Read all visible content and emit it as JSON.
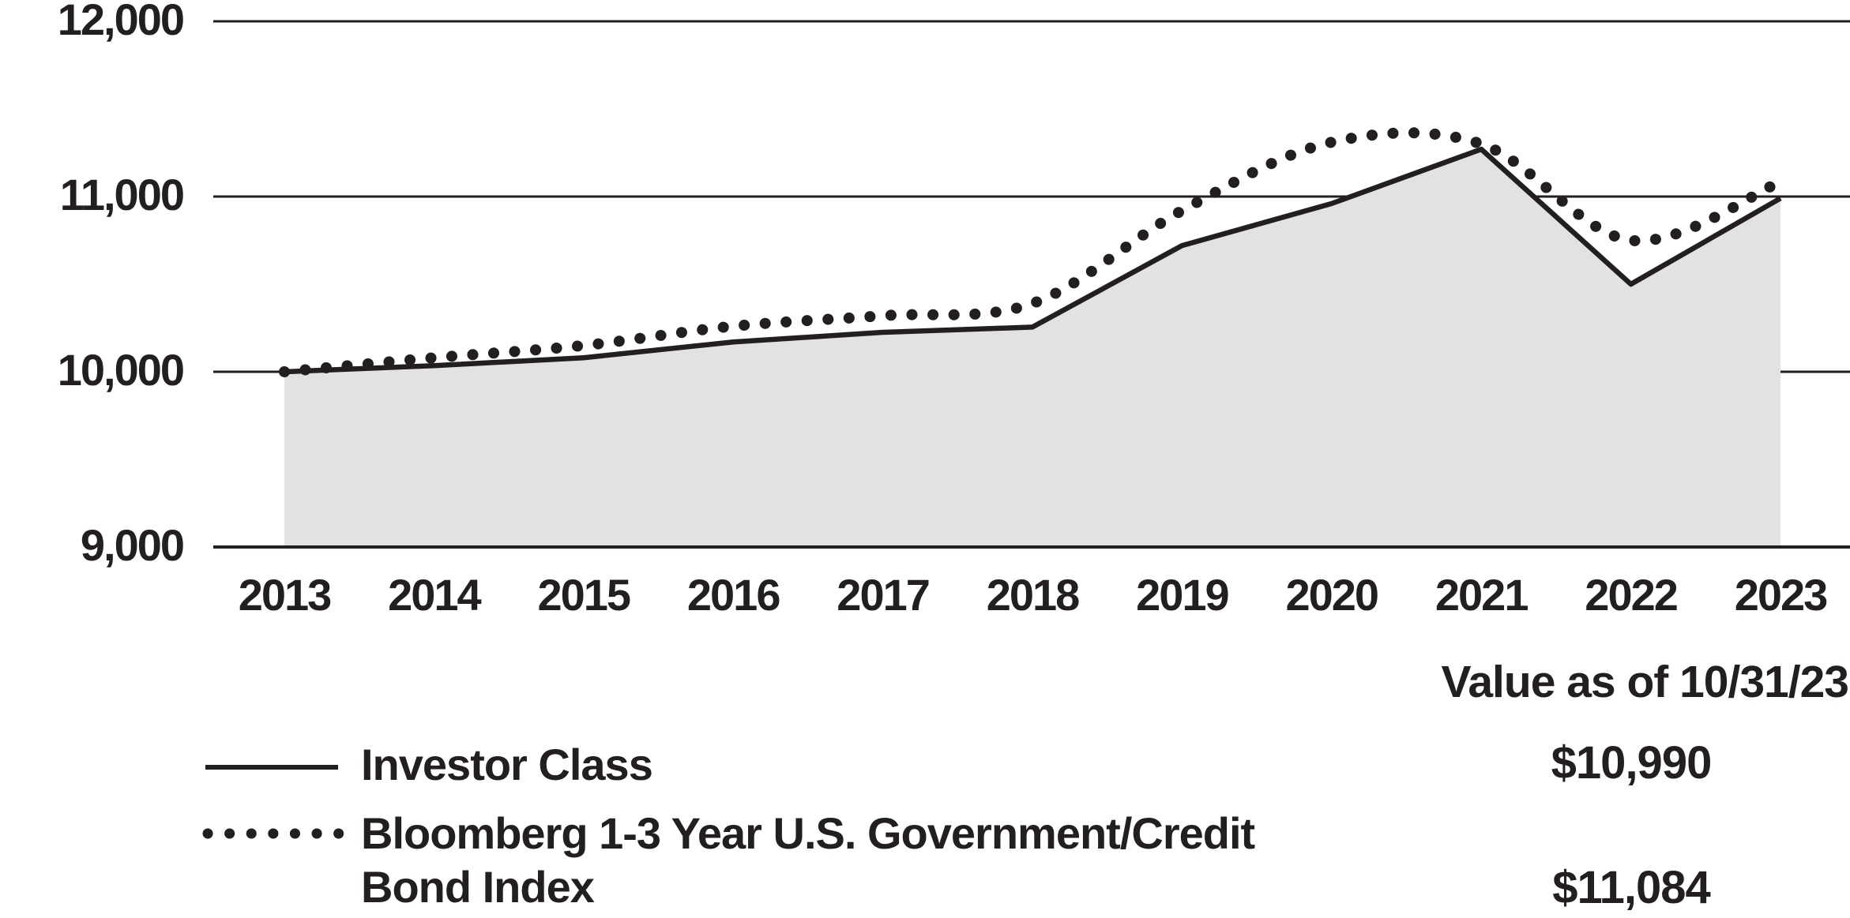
{
  "page": {
    "background": "#ffffff",
    "ink_color": "#231f20",
    "area_fill_color": "#e2e2e2"
  },
  "chart_data": {
    "type": "area",
    "title": "",
    "xlabel": "",
    "ylabel": "",
    "x": [
      2013,
      2014,
      2015,
      2016,
      2017,
      2018,
      2019,
      2020,
      2021,
      2022,
      2023
    ],
    "x_tick_labels": [
      "2013",
      "2014",
      "2015",
      "2016",
      "2017",
      "2018",
      "2019",
      "2020",
      "2021",
      "2022",
      "2023"
    ],
    "y_tick_values": [
      12000,
      11000,
      10000,
      9000
    ],
    "y_tick_labels": [
      "12,000",
      "11,000",
      "10,000",
      "9,000"
    ],
    "ylim": [
      9000,
      12000
    ],
    "grid": "horizontal",
    "legend_position": "bottom",
    "series": [
      {
        "name": "Investor Class",
        "line_style": "solid",
        "area_fill": true,
        "values": [
          10000,
          10035,
          10080,
          10170,
          10225,
          10255,
          10720,
          10960,
          11270,
          10500,
          10990
        ],
        "ending_value": "$10,990"
      },
      {
        "name": "Bloomberg 1-3 Year U.S. Government/Credit Bond Index",
        "line_style": "dotted",
        "area_fill": false,
        "values": [
          10000,
          10080,
          10150,
          10260,
          10320,
          10390,
          10920,
          11310,
          11300,
          10750,
          11084
        ],
        "ending_value": "$11,084"
      }
    ]
  },
  "legend": {
    "items": [
      {
        "label": "Investor Class",
        "swatch": "solid-line"
      },
      {
        "label_lines": [
          "Bloomberg 1-3 Year U.S. Government/Credit",
          "Bond Index"
        ],
        "swatch": "dotted-line"
      }
    ],
    "value_column": {
      "header": "Value as of 10/31/23",
      "values": [
        "$10,990",
        "$11,084"
      ]
    }
  }
}
